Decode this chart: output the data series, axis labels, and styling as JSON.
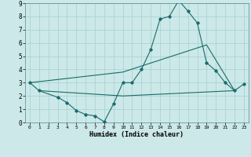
{
  "xlabel": "Humidex (Indice chaleur)",
  "bg_color": "#cce8e8",
  "grid_color": "#aad4d4",
  "line_color": "#1a6b6b",
  "xlim": [
    -0.5,
    23.5
  ],
  "ylim": [
    0,
    9
  ],
  "line1_x": [
    0,
    1,
    3,
    4,
    5,
    6,
    7,
    8,
    9,
    10,
    11,
    12,
    13,
    14,
    15,
    16,
    17,
    18,
    19,
    20,
    21,
    22,
    23
  ],
  "line1_y": [
    3.0,
    2.4,
    1.9,
    1.5,
    0.9,
    0.6,
    0.5,
    0.05,
    1.4,
    3.0,
    3.0,
    4.0,
    5.5,
    7.8,
    8.0,
    9.2,
    8.4,
    7.5,
    4.5,
    3.9,
    3.0,
    2.4,
    2.9
  ],
  "line2_x": [
    0,
    10,
    19,
    22
  ],
  "line2_y": [
    3.0,
    3.8,
    5.85,
    2.4
  ],
  "line3_x": [
    1,
    10,
    22
  ],
  "line3_y": [
    2.4,
    2.0,
    2.4
  ],
  "xticks": [
    0,
    1,
    2,
    3,
    4,
    5,
    6,
    7,
    8,
    9,
    10,
    11,
    12,
    13,
    14,
    15,
    16,
    17,
    18,
    19,
    20,
    21,
    22,
    23
  ],
  "yticks": [
    0,
    1,
    2,
    3,
    4,
    5,
    6,
    7,
    8,
    9
  ]
}
